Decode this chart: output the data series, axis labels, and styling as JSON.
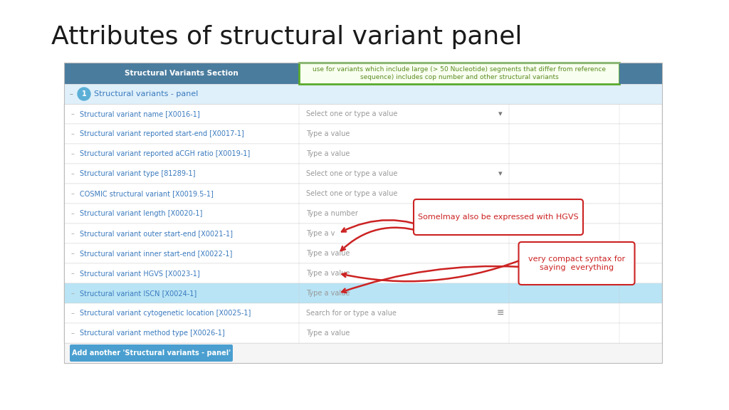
{
  "title": "Attributes of structural variant panel",
  "title_fontsize": 26,
  "header_bg": "#4a7c9e",
  "header_text": "Structural Variants Section",
  "header_text_color": "#ffffff",
  "tooltip_border": "#5aaa2a",
  "tooltip_bg": "#f8fff0",
  "tooltip_text": "use for variants which include large (> 50 Nucleotide) segments that differ from reference\nsequence) includes cop number and other structural variants",
  "tooltip_text_color": "#5a8a20",
  "panel_label_bg": "#5bafd6",
  "panel_row_text": "Structural variants - panel",
  "panel_row_bg": "#dff0fa",
  "highlight_row_bg": "#b8e4f5",
  "rows": [
    {
      "label": "Structural variant name [X0016-1]",
      "field": "Select one or type a value",
      "dropdown": true,
      "highlight": false,
      "search": false
    },
    {
      "label": "Structural variant reported start-end [X0017-1]",
      "field": "Type a value",
      "dropdown": false,
      "highlight": false,
      "search": false
    },
    {
      "label": "Structural variant reported aCGH ratio [X0019-1]",
      "field": "Type a value",
      "dropdown": false,
      "highlight": false,
      "search": false
    },
    {
      "label": "Structural variant type [81289-1]",
      "field": "Select one or type a value",
      "dropdown": true,
      "highlight": false,
      "search": false
    },
    {
      "label": "COSMIC structural variant [X0019.5-1]",
      "field": "Select one or type a value",
      "dropdown": false,
      "highlight": false,
      "search": false
    },
    {
      "label": "Structural variant length [X0020-1]",
      "field": "Type a number",
      "dropdown": false,
      "highlight": false,
      "search": false
    },
    {
      "label": "Structural variant outer start-end [X0021-1]",
      "field": "Type a v",
      "dropdown": false,
      "highlight": false,
      "search": false
    },
    {
      "label": "Structural variant inner start-end [X0022-1]",
      "field": "Type a value",
      "dropdown": false,
      "highlight": false,
      "search": false
    },
    {
      "label": "Structural variant HGVS [X0023-1]",
      "field": "Type a value",
      "dropdown": false,
      "highlight": false,
      "search": false
    },
    {
      "label": "Structural variant ISCN [X0024-1]",
      "field": "Type a value",
      "dropdown": false,
      "highlight": true,
      "search": false
    },
    {
      "label": "Structural variant cytogenetic location [X0025-1]",
      "field": "Search for or type a value",
      "dropdown": false,
      "highlight": false,
      "search": true
    },
    {
      "label": "Structural variant method type [X0026-1]",
      "field": "Type a value",
      "dropdown": false,
      "highlight": false,
      "search": false
    }
  ],
  "callout1_text": "SomeImay also be expressed with HGVS",
  "callout2_text": "very compact syntax for\nsaying  everything",
  "callout_color": "#cc2222",
  "add_button_text": "Add another 'Structural variants - panel'",
  "add_button_bg": "#4a9fd0",
  "label_color": "#3a7abf",
  "field_color": "#999999",
  "row_line_color": "#d0d0d0",
  "alt_row_bg": "#f0f8ff",
  "table_bg": "#ffffff"
}
